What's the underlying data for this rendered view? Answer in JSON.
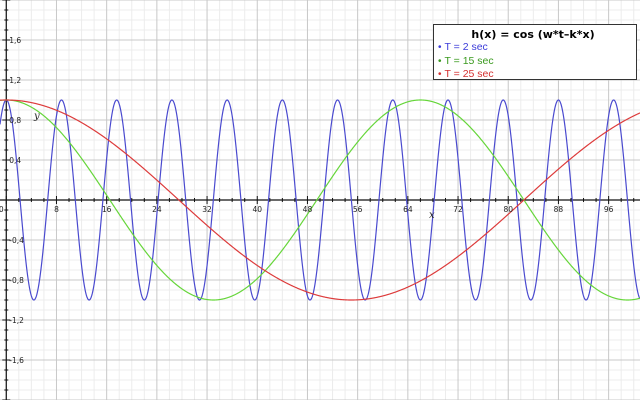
{
  "chart_data": {
    "type": "line",
    "title": "h(x) = cos (w*t–k*x)",
    "xlabel": "x",
    "ylabel": "y",
    "xlim": [
      -1,
      101
    ],
    "ylim": [
      -2,
      2
    ],
    "grid": true,
    "legend_position": "top-right",
    "x_ticks": [
      0,
      8,
      16,
      24,
      32,
      40,
      48,
      56,
      64,
      72,
      80,
      88,
      96
    ],
    "x_tick_labels": [
      "0",
      "8",
      "16",
      "24",
      "32",
      "40",
      "48",
      "56",
      "64",
      "72",
      "80",
      "88",
      "96"
    ],
    "y_ticks": [
      1.6,
      1.2,
      0.8,
      0.4,
      -0.4,
      -0.8,
      -1.2,
      -1.6
    ],
    "y_tick_labels": [
      "1,6",
      "1,2",
      "0,8",
      "0,4",
      "-0,4",
      "-0,8",
      "-1,2",
      "-1,6"
    ],
    "series": [
      {
        "name": "T = 2 sec",
        "color": "#4a4acf",
        "function": "cos",
        "period": 8.8,
        "phase": 0,
        "x_range": [
          -1,
          101
        ]
      },
      {
        "name": "T = 15 sec",
        "color": "#66d63a",
        "function": "cos",
        "period": 66,
        "phase": 0,
        "x_range": [
          -1,
          101
        ]
      },
      {
        "name": "T = 25 sec",
        "color": "#dd3b3b",
        "function": "cos",
        "period": 110,
        "phase": 0,
        "x_range": [
          -1,
          101
        ]
      }
    ]
  },
  "legend": {
    "title": "h(x) = cos (w*t–k*x)",
    "items": [
      {
        "label": "T = 2 sec",
        "color": "#3b3bd9"
      },
      {
        "label": "T = 15 sec",
        "color": "#3a9a1e"
      },
      {
        "label": "T = 25 sec",
        "color": "#d43030"
      }
    ]
  }
}
